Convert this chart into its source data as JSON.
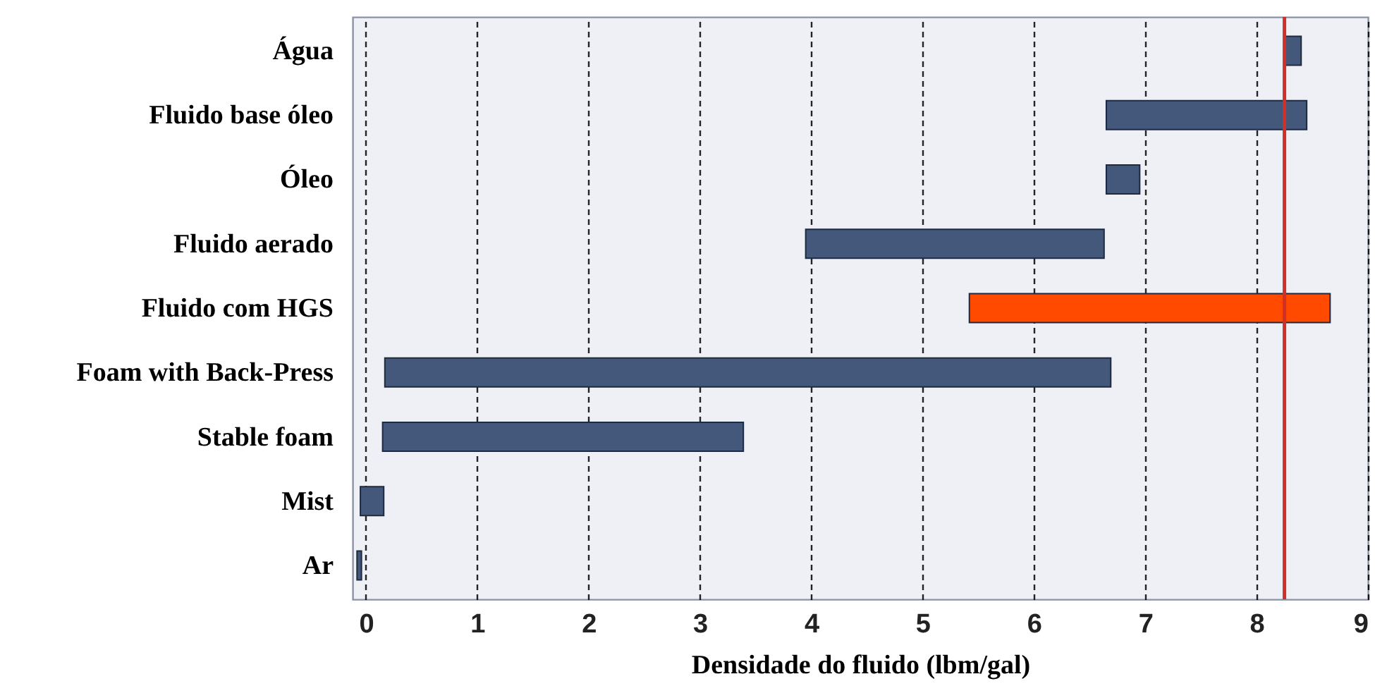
{
  "chart_data": {
    "type": "bar",
    "orientation": "horizontal",
    "xlabel": "Densidade do fluido (lbm/gal)",
    "categories": [
      "Água",
      "Fluido base óleo",
      "Óleo",
      "Fluido aerado",
      "Fluido com HGS",
      "Foam with Back-Press",
      "Stable foam",
      "Mist",
      "Ar"
    ],
    "base": [
      8.25,
      6.65,
      6.65,
      3.95,
      5.42,
      0.17,
      0.15,
      -0.05,
      -0.08
    ],
    "values": [
      0.15,
      1.8,
      0.3,
      2.68,
      3.24,
      6.52,
      3.24,
      0.21,
      0.04
    ],
    "colors": [
      "#44587c",
      "#44587c",
      "#44587c",
      "#44587c",
      "#ff4a00",
      "#44587c",
      "#44587c",
      "#44587c",
      "#44587c"
    ],
    "xlim": [
      -0.12,
      9.0
    ],
    "xticks": [
      0,
      1,
      2,
      3,
      4,
      5,
      6,
      7,
      8,
      9
    ],
    "grid": "x",
    "ref_lines": [
      {
        "axis": "x",
        "value": 8.25,
        "color": "#d0302a"
      }
    ]
  }
}
